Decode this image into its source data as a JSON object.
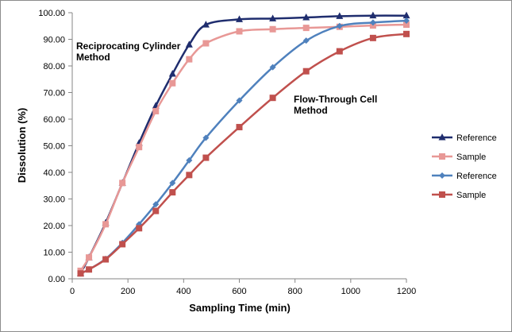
{
  "chart_data": {
    "type": "line",
    "xlabel": "Sampling Time (min)",
    "ylabel": "Dissolution (%)",
    "xlim": [
      0,
      1200
    ],
    "ylim": [
      0,
      100
    ],
    "xticks": [
      0,
      200,
      400,
      600,
      800,
      1000,
      1200
    ],
    "xtick_labels": [
      "0",
      "200",
      "400",
      "600",
      "800",
      "1000",
      "1200"
    ],
    "yticks": [
      0,
      10,
      20,
      30,
      40,
      50,
      60,
      70,
      80,
      90,
      100
    ],
    "ytick_labels": [
      "0.00",
      "10.00",
      "20.00",
      "30.00",
      "40.00",
      "50.00",
      "60.00",
      "70.00",
      "80.00",
      "90.00",
      "100.00"
    ],
    "grid": false,
    "legend_position": "right",
    "annotations": [
      {
        "lines": [
          "Reciprocating Cylinder",
          "Method"
        ]
      },
      {
        "lines": [
          "Flow-Through Cell",
          "Method"
        ]
      }
    ],
    "series": [
      {
        "name": "Reference",
        "color": "#1f2d6e",
        "marker": "triangle",
        "points": [
          [
            30,
            2
          ],
          [
            60,
            8
          ],
          [
            120,
            21
          ],
          [
            180,
            36
          ],
          [
            240,
            51
          ],
          [
            300,
            65
          ],
          [
            360,
            77
          ],
          [
            420,
            88
          ],
          [
            480,
            95.5
          ],
          [
            600,
            97.5
          ],
          [
            720,
            97.8
          ],
          [
            840,
            98.2
          ],
          [
            960,
            98.7
          ],
          [
            1080,
            98.9
          ],
          [
            1200,
            98.9
          ]
        ]
      },
      {
        "name": "Sample",
        "color": "#e89896",
        "marker": "square",
        "points": [
          [
            30,
            3
          ],
          [
            60,
            8
          ],
          [
            120,
            20.5
          ],
          [
            180,
            36
          ],
          [
            240,
            49.5
          ],
          [
            300,
            63
          ],
          [
            360,
            73.5
          ],
          [
            420,
            82.5
          ],
          [
            480,
            88.5
          ],
          [
            600,
            93
          ],
          [
            720,
            93.8
          ],
          [
            840,
            94.3
          ],
          [
            960,
            94.7
          ],
          [
            1080,
            95.2
          ],
          [
            1200,
            95.5
          ]
        ]
      },
      {
        "name": "Reference",
        "color": "#4f81bd",
        "marker": "diamond",
        "points": [
          [
            30,
            2
          ],
          [
            60,
            3.5
          ],
          [
            120,
            7.5
          ],
          [
            180,
            13.5
          ],
          [
            240,
            20.5
          ],
          [
            300,
            28
          ],
          [
            360,
            36
          ],
          [
            420,
            44.5
          ],
          [
            480,
            53
          ],
          [
            600,
            67
          ],
          [
            720,
            79.5
          ],
          [
            840,
            89.5
          ],
          [
            960,
            95
          ],
          [
            1080,
            96.3
          ],
          [
            1200,
            97
          ]
        ]
      },
      {
        "name": "Sample",
        "color": "#c0504d",
        "marker": "square",
        "points": [
          [
            30,
            2
          ],
          [
            60,
            3.5
          ],
          [
            120,
            7.3
          ],
          [
            180,
            13
          ],
          [
            240,
            19
          ],
          [
            300,
            25.5
          ],
          [
            360,
            32.5
          ],
          [
            420,
            39
          ],
          [
            480,
            45.5
          ],
          [
            600,
            57
          ],
          [
            720,
            68
          ],
          [
            840,
            78
          ],
          [
            960,
            85.5
          ],
          [
            1080,
            90.5
          ],
          [
            1200,
            92
          ]
        ]
      }
    ]
  }
}
